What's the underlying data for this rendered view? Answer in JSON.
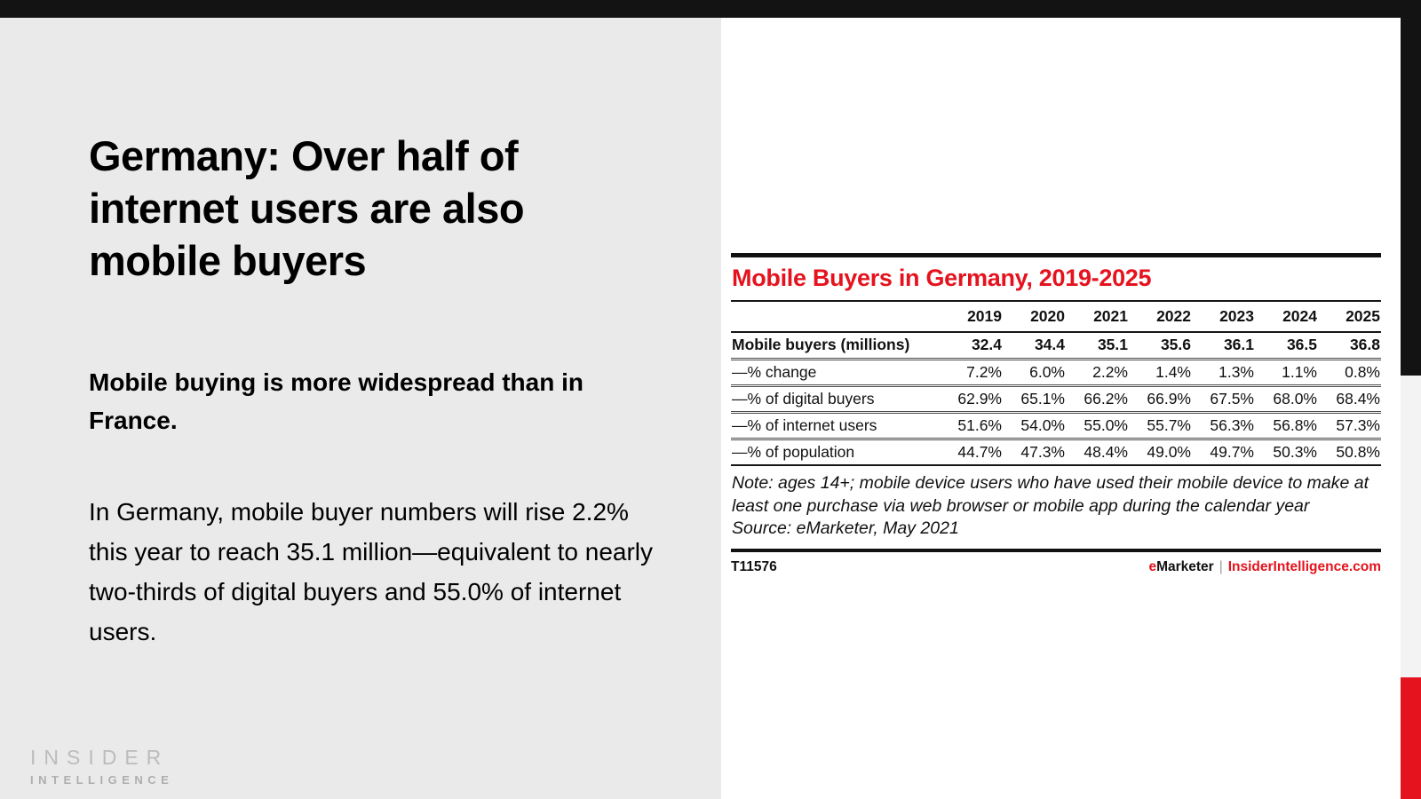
{
  "slide": {
    "title": "Germany: Over half of internet users are also mobile buyers",
    "subtitle": "Mobile buying is more widespread than in France.",
    "body": "In Germany, mobile buyer numbers will rise 2.2% this year to reach 35.1 million—equivalent to nearly two-thirds of digital buyers and 55.0% of internet users.",
    "logo": {
      "line1": "INSIDER",
      "line2": "INTELLIGENCE"
    }
  },
  "chart_data": {
    "type": "table",
    "title": "Mobile Buyers in Germany, 2019-2025",
    "columns": [
      "",
      "2019",
      "2020",
      "2021",
      "2022",
      "2023",
      "2024",
      "2025"
    ],
    "rows": [
      {
        "label": "Mobile buyers (millions)",
        "bold": true,
        "values": [
          "32.4",
          "34.4",
          "35.1",
          "35.6",
          "36.1",
          "36.5",
          "36.8"
        ]
      },
      {
        "label": "—% change",
        "bold": false,
        "values": [
          "7.2%",
          "6.0%",
          "2.2%",
          "1.4%",
          "1.3%",
          "1.1%",
          "0.8%"
        ]
      },
      {
        "label": "—% of digital buyers",
        "bold": false,
        "values": [
          "62.9%",
          "65.1%",
          "66.2%",
          "66.9%",
          "67.5%",
          "68.0%",
          "68.4%"
        ]
      },
      {
        "label": "—% of internet users",
        "bold": false,
        "values": [
          "51.6%",
          "54.0%",
          "55.0%",
          "55.7%",
          "56.3%",
          "56.8%",
          "57.3%"
        ]
      },
      {
        "label": "—% of population",
        "bold": false,
        "values": [
          "44.7%",
          "47.3%",
          "48.4%",
          "49.0%",
          "49.7%",
          "50.3%",
          "50.8%"
        ]
      }
    ],
    "note": "Note: ages 14+; mobile device users who have used their mobile device to make at least one purchase via web browser or mobile app during the calendar year",
    "source": "Source: eMarketer, May 2021",
    "footer_id": "T11576",
    "brand": {
      "e": "e",
      "marketer": "Marketer",
      "separator": "|",
      "site": "InsiderIntelligence.com"
    }
  },
  "colors": {
    "accent_red": "#e4131e",
    "bar_black": "#131313",
    "panel_gray": "#eaeaea",
    "strip_gray": "#f2f3f2"
  }
}
